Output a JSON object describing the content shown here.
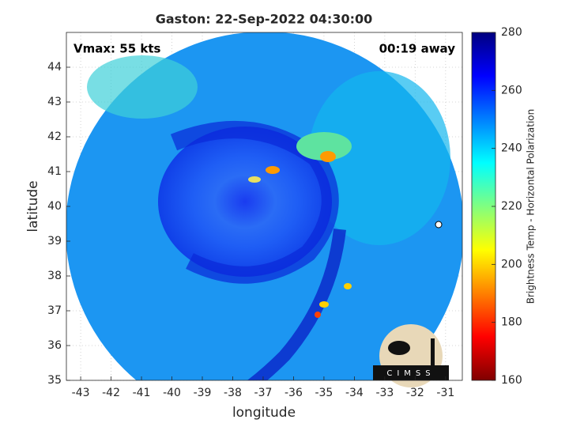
{
  "chart_data": {
    "type": "image",
    "title": "Gaston: 22-Sep-2022 04:30:00",
    "annotations": [
      "Vmax: 55 kts",
      "00:19 away"
    ],
    "xlabel": "longitude",
    "ylabel": "latitude",
    "xlim": [
      -43.47,
      -30.45
    ],
    "ylim": [
      35,
      45
    ],
    "xticks": [
      -43,
      -42,
      -41,
      -40,
      -39,
      -38,
      -37,
      -36,
      -35,
      -34,
      -33,
      -32,
      -31
    ],
    "yticks": [
      35,
      36,
      37,
      38,
      39,
      40,
      41,
      42,
      43,
      44
    ],
    "grid": true,
    "colorbar": {
      "label": "Brightness Temp - Horizontal Polarization",
      "lim": [
        160,
        280
      ],
      "ticks": [
        160,
        180,
        200,
        220,
        240,
        260,
        280
      ],
      "colormap": [
        "#7f0000",
        "#ff0000",
        "#ff8000",
        "#ffff00",
        "#80ff80",
        "#00ffff",
        "#0080ff",
        "#0000ff",
        "#00007f"
      ]
    },
    "logo_text": "CIMSS"
  }
}
